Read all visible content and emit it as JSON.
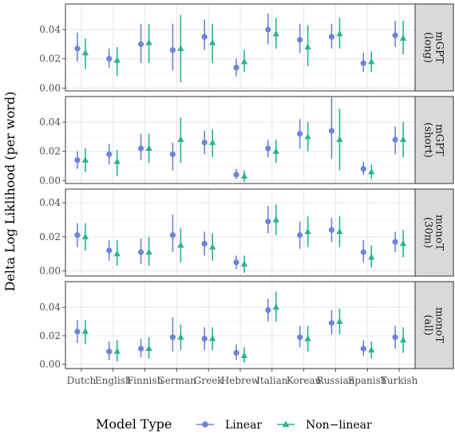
{
  "chart_data": {
    "type": "scatter",
    "subtype": "point-range faceted",
    "ylabel": "Delta Log Liklihood (per word)",
    "xlabel": "",
    "categories": [
      "Dutch",
      "English",
      "Finnish",
      "German",
      "Greek",
      "Hebrew",
      "Italian",
      "Korean",
      "Russian",
      "Spanish",
      "Turkish"
    ],
    "yticks": [
      0.0,
      0.02,
      0.04
    ],
    "ytick_labels": [
      "0.00",
      "0.02",
      "0.04"
    ],
    "grid": true,
    "legend": {
      "title": "Model Type",
      "position": "bottom",
      "items": [
        {
          "label": "Linear",
          "shape": "circle",
          "color": "#6b86d6"
        },
        {
          "label": "Non−linear",
          "shape": "triangle",
          "color": "#2bb38e"
        }
      ]
    },
    "panels": [
      {
        "label_line1": "mGPT",
        "label_line2": "(long)",
        "ylim": [
          -0.002,
          0.0575
        ],
        "series": [
          {
            "name": "Linear",
            "values": [
              0.027,
              0.02,
              0.03,
              0.026,
              0.035,
              0.014,
              0.04,
              0.033,
              0.035,
              0.017,
              0.036
            ],
            "low": [
              0.018,
              0.014,
              0.017,
              0.012,
              0.026,
              0.008,
              0.03,
              0.024,
              0.027,
              0.011,
              0.028
            ],
            "high": [
              0.038,
              0.027,
              0.044,
              0.044,
              0.047,
              0.02,
              0.051,
              0.044,
              0.044,
              0.024,
              0.046
            ]
          },
          {
            "name": "Non−linear",
            "values": [
              0.024,
              0.019,
              0.031,
              0.027,
              0.031,
              0.018,
              0.037,
              0.028,
              0.037,
              0.018,
              0.034
            ],
            "low": [
              0.013,
              0.008,
              0.017,
              0.004,
              0.017,
              0.011,
              0.027,
              0.015,
              0.027,
              0.011,
              0.023
            ],
            "high": [
              0.034,
              0.028,
              0.044,
              0.05,
              0.044,
              0.026,
              0.048,
              0.043,
              0.048,
              0.025,
              0.046
            ]
          }
        ]
      },
      {
        "label_line1": "mGPT",
        "label_line2": "(short)",
        "ylim": [
          -0.002,
          0.0575
        ],
        "series": [
          {
            "name": "Linear",
            "values": [
              0.014,
              0.018,
              0.022,
              0.018,
              0.026,
              0.004,
              0.022,
              0.032,
              0.034,
              0.008,
              0.028
            ],
            "low": [
              0.008,
              0.011,
              0.014,
              0.007,
              0.018,
              0.001,
              0.016,
              0.022,
              0.015,
              0.004,
              0.018
            ],
            "high": [
              0.02,
              0.025,
              0.032,
              0.026,
              0.034,
              0.008,
              0.028,
              0.042,
              0.057,
              0.013,
              0.037
            ]
          },
          {
            "name": "Non−linear",
            "values": [
              0.014,
              0.013,
              0.022,
              0.028,
              0.026,
              0.003,
              0.02,
              0.03,
              0.028,
              0.006,
              0.028
            ],
            "low": [
              0.006,
              0.003,
              0.012,
              0.012,
              0.016,
              -0.001,
              0.012,
              0.02,
              0.007,
              0.001,
              0.016
            ],
            "high": [
              0.022,
              0.021,
              0.032,
              0.043,
              0.035,
              0.007,
              0.028,
              0.04,
              0.049,
              0.011,
              0.04
            ]
          }
        ]
      },
      {
        "label_line1": "monoT",
        "label_line2": "(30m)",
        "ylim": [
          -0.003,
          0.048
        ],
        "series": [
          {
            "name": "Linear",
            "values": [
              0.021,
              0.012,
              0.011,
              0.021,
              0.016,
              0.005,
              0.029,
              0.021,
              0.024,
              0.011,
              0.017
            ],
            "low": [
              0.014,
              0.006,
              0.004,
              0.011,
              0.009,
              0.001,
              0.022,
              0.013,
              0.017,
              0.005,
              0.011
            ],
            "high": [
              0.028,
              0.018,
              0.019,
              0.033,
              0.023,
              0.009,
              0.038,
              0.029,
              0.031,
              0.018,
              0.023
            ]
          },
          {
            "name": "Non−linear",
            "values": [
              0.02,
              0.01,
              0.011,
              0.015,
              0.014,
              0.004,
              0.03,
              0.023,
              0.023,
              0.008,
              0.016
            ],
            "low": [
              0.012,
              0.003,
              0.003,
              0.005,
              0.006,
              -0.001,
              0.021,
              0.014,
              0.014,
              0.002,
              0.008
            ],
            "high": [
              0.028,
              0.018,
              0.02,
              0.025,
              0.022,
              0.009,
              0.039,
              0.032,
              0.032,
              0.015,
              0.024
            ]
          }
        ]
      },
      {
        "label_line1": "monoT",
        "label_line2": "(all)",
        "ylim": [
          -0.003,
          0.058
        ],
        "series": [
          {
            "name": "Linear",
            "values": [
              0.023,
              0.009,
              0.011,
              0.019,
              0.018,
              0.008,
              0.038,
              0.019,
              0.029,
              0.011,
              0.019
            ],
            "low": [
              0.015,
              0.003,
              0.005,
              0.009,
              0.01,
              0.003,
              0.03,
              0.012,
              0.021,
              0.006,
              0.011
            ],
            "high": [
              0.031,
              0.016,
              0.018,
              0.033,
              0.026,
              0.014,
              0.046,
              0.027,
              0.038,
              0.017,
              0.027
            ]
          },
          {
            "name": "Non−linear",
            "values": [
              0.023,
              0.009,
              0.011,
              0.019,
              0.018,
              0.006,
              0.04,
              0.018,
              0.03,
              0.01,
              0.017
            ],
            "low": [
              0.014,
              0.002,
              0.004,
              0.01,
              0.01,
              0.001,
              0.03,
              0.009,
              0.021,
              0.004,
              0.008
            ],
            "high": [
              0.031,
              0.017,
              0.019,
              0.028,
              0.026,
              0.012,
              0.051,
              0.027,
              0.039,
              0.016,
              0.026
            ]
          }
        ]
      }
    ]
  }
}
